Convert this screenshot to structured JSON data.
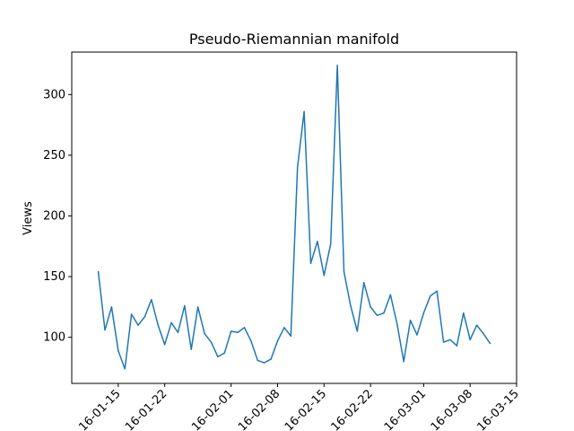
{
  "chart_data": {
    "type": "line",
    "title": "Pseudo-Riemannian manifold",
    "xlabel": "",
    "ylabel": "Views",
    "grid": false,
    "legend": "none",
    "xlim": [
      "2016-01-08",
      "2016-03-15"
    ],
    "ylim": [
      62,
      335
    ],
    "x_ticks": [
      "2016-01-15",
      "2016-01-22",
      "2016-02-01",
      "2016-02-08",
      "2016-02-15",
      "2016-02-22",
      "2016-03-01",
      "2016-03-08",
      "2016-03-15"
    ],
    "x_tick_labels": [
      "16-01-15",
      "16-01-22",
      "16-02-01",
      "16-02-08",
      "16-02-15",
      "16-02-22",
      "16-03-01",
      "16-03-08",
      "16-03-15"
    ],
    "y_ticks": [
      100,
      150,
      200,
      250,
      300
    ],
    "series": [
      {
        "color": "#1f77b4",
        "x": [
          "2016-01-12",
          "2016-01-13",
          "2016-01-14",
          "2016-01-15",
          "2016-01-16",
          "2016-01-17",
          "2016-01-18",
          "2016-01-19",
          "2016-01-20",
          "2016-01-21",
          "2016-01-22",
          "2016-01-23",
          "2016-01-24",
          "2016-01-25",
          "2016-01-26",
          "2016-01-27",
          "2016-01-28",
          "2016-01-29",
          "2016-01-30",
          "2016-01-31",
          "2016-02-01",
          "2016-02-02",
          "2016-02-03",
          "2016-02-04",
          "2016-02-05",
          "2016-02-06",
          "2016-02-07",
          "2016-02-08",
          "2016-02-09",
          "2016-02-10",
          "2016-02-11",
          "2016-02-12",
          "2016-02-13",
          "2016-02-14",
          "2016-02-15",
          "2016-02-16",
          "2016-02-17",
          "2016-02-18",
          "2016-02-19",
          "2016-02-20",
          "2016-02-21",
          "2016-02-22",
          "2016-02-23",
          "2016-02-24",
          "2016-02-25",
          "2016-02-26",
          "2016-02-27",
          "2016-02-28",
          "2016-02-29",
          "2016-03-01",
          "2016-03-02",
          "2016-03-03",
          "2016-03-04",
          "2016-03-05",
          "2016-03-06",
          "2016-03-07",
          "2016-03-08",
          "2016-03-09",
          "2016-03-10",
          "2016-03-11"
        ],
        "values": [
          154,
          106,
          125,
          89,
          74,
          119,
          110,
          117,
          131,
          110,
          94,
          112,
          104,
          126,
          90,
          125,
          103,
          96,
          84,
          87,
          105,
          104,
          108,
          97,
          81,
          79,
          82,
          97,
          108,
          101,
          240,
          286,
          161,
          179,
          151,
          177,
          324,
          154,
          126,
          105,
          145,
          125,
          118,
          120,
          135,
          111,
          80,
          114,
          102,
          120,
          134,
          138,
          96,
          98,
          93,
          120,
          98,
          110,
          103,
          95
        ]
      }
    ]
  }
}
